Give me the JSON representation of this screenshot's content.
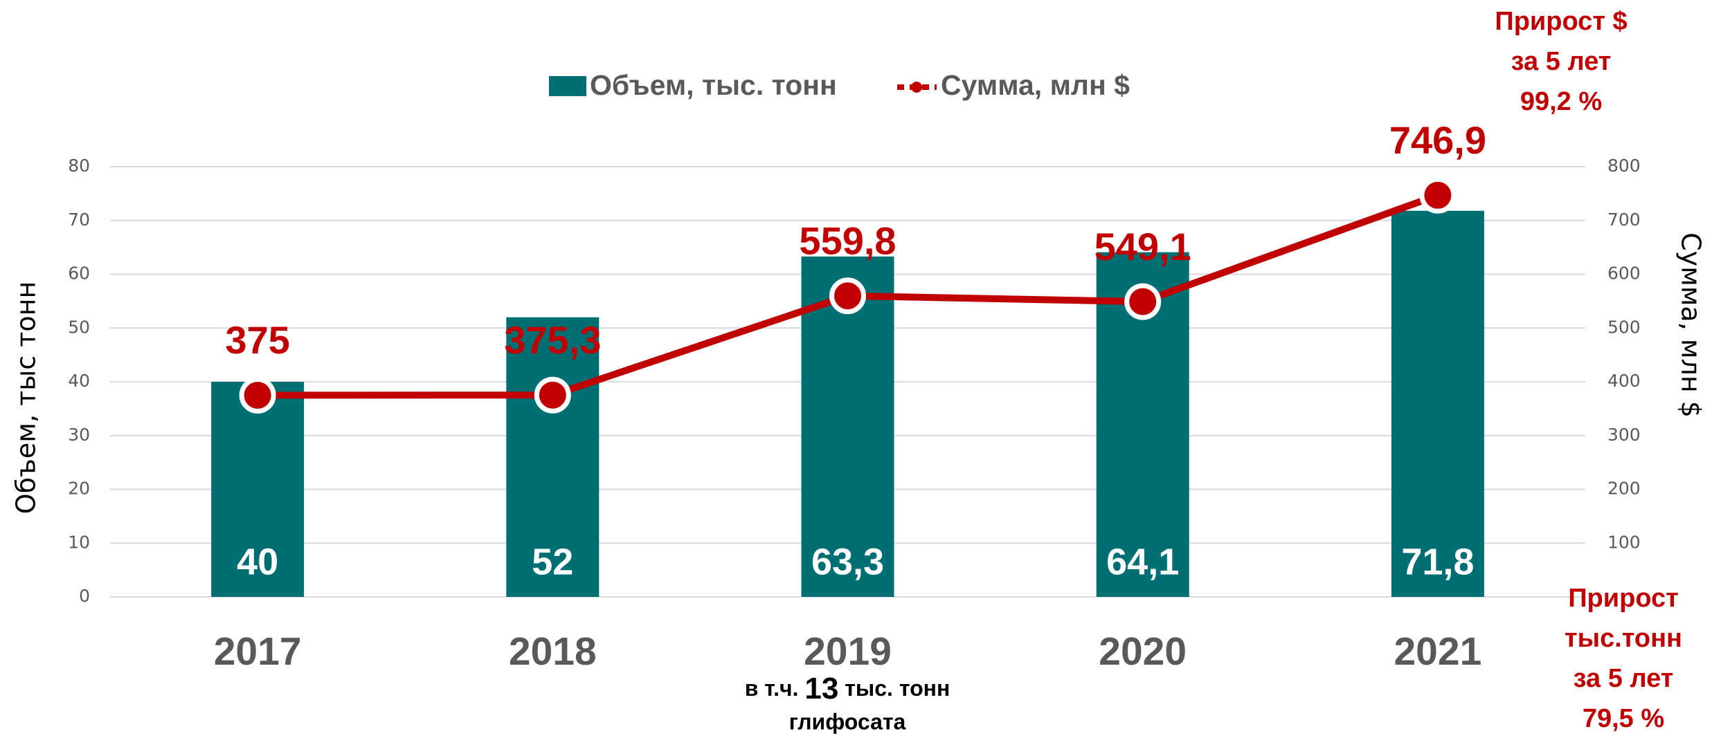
{
  "chart_data": {
    "type": "bar",
    "categories": [
      "2017",
      "2018",
      "2019",
      "2020",
      "2021"
    ],
    "series": [
      {
        "name": "Объем, тыс. тонн",
        "type": "bar",
        "color": "#006f74",
        "values": [
          40,
          52,
          63.3,
          64.1,
          71.8
        ],
        "value_labels": [
          "40",
          "52",
          "63,3",
          "64,1",
          "71,8"
        ]
      },
      {
        "name": "Сумма, млн $",
        "type": "line",
        "axis": "y2",
        "color": "#c00000",
        "values": [
          375,
          375.3,
          559.8,
          549.1,
          746.9
        ],
        "value_labels": [
          "375",
          "375,3",
          "559,8",
          "549,1",
          "746,9"
        ]
      }
    ],
    "ylabel": "Объем, тыс тонн",
    "y2label": "Сумма, млн $",
    "ylim": [
      0,
      80
    ],
    "yticks": [
      0,
      10,
      20,
      30,
      40,
      50,
      60,
      70,
      80
    ],
    "y2lim": [
      0,
      800
    ],
    "y2ticks": [
      100,
      200,
      300,
      400,
      500,
      600,
      700,
      800
    ],
    "grid": true,
    "legend": "top",
    "annotations": {
      "growth_usd": [
        "Прирост $",
        "за 5 лет",
        "99,2 %"
      ],
      "growth_tons": [
        "Прирост",
        "тыс.тонн",
        "за 5 лет",
        "79,5 %"
      ],
      "note": {
        "prefix": "в т.ч. ",
        "number": "13",
        "suffix": " тыс. тонн",
        "line2": "глифосата"
      }
    }
  }
}
